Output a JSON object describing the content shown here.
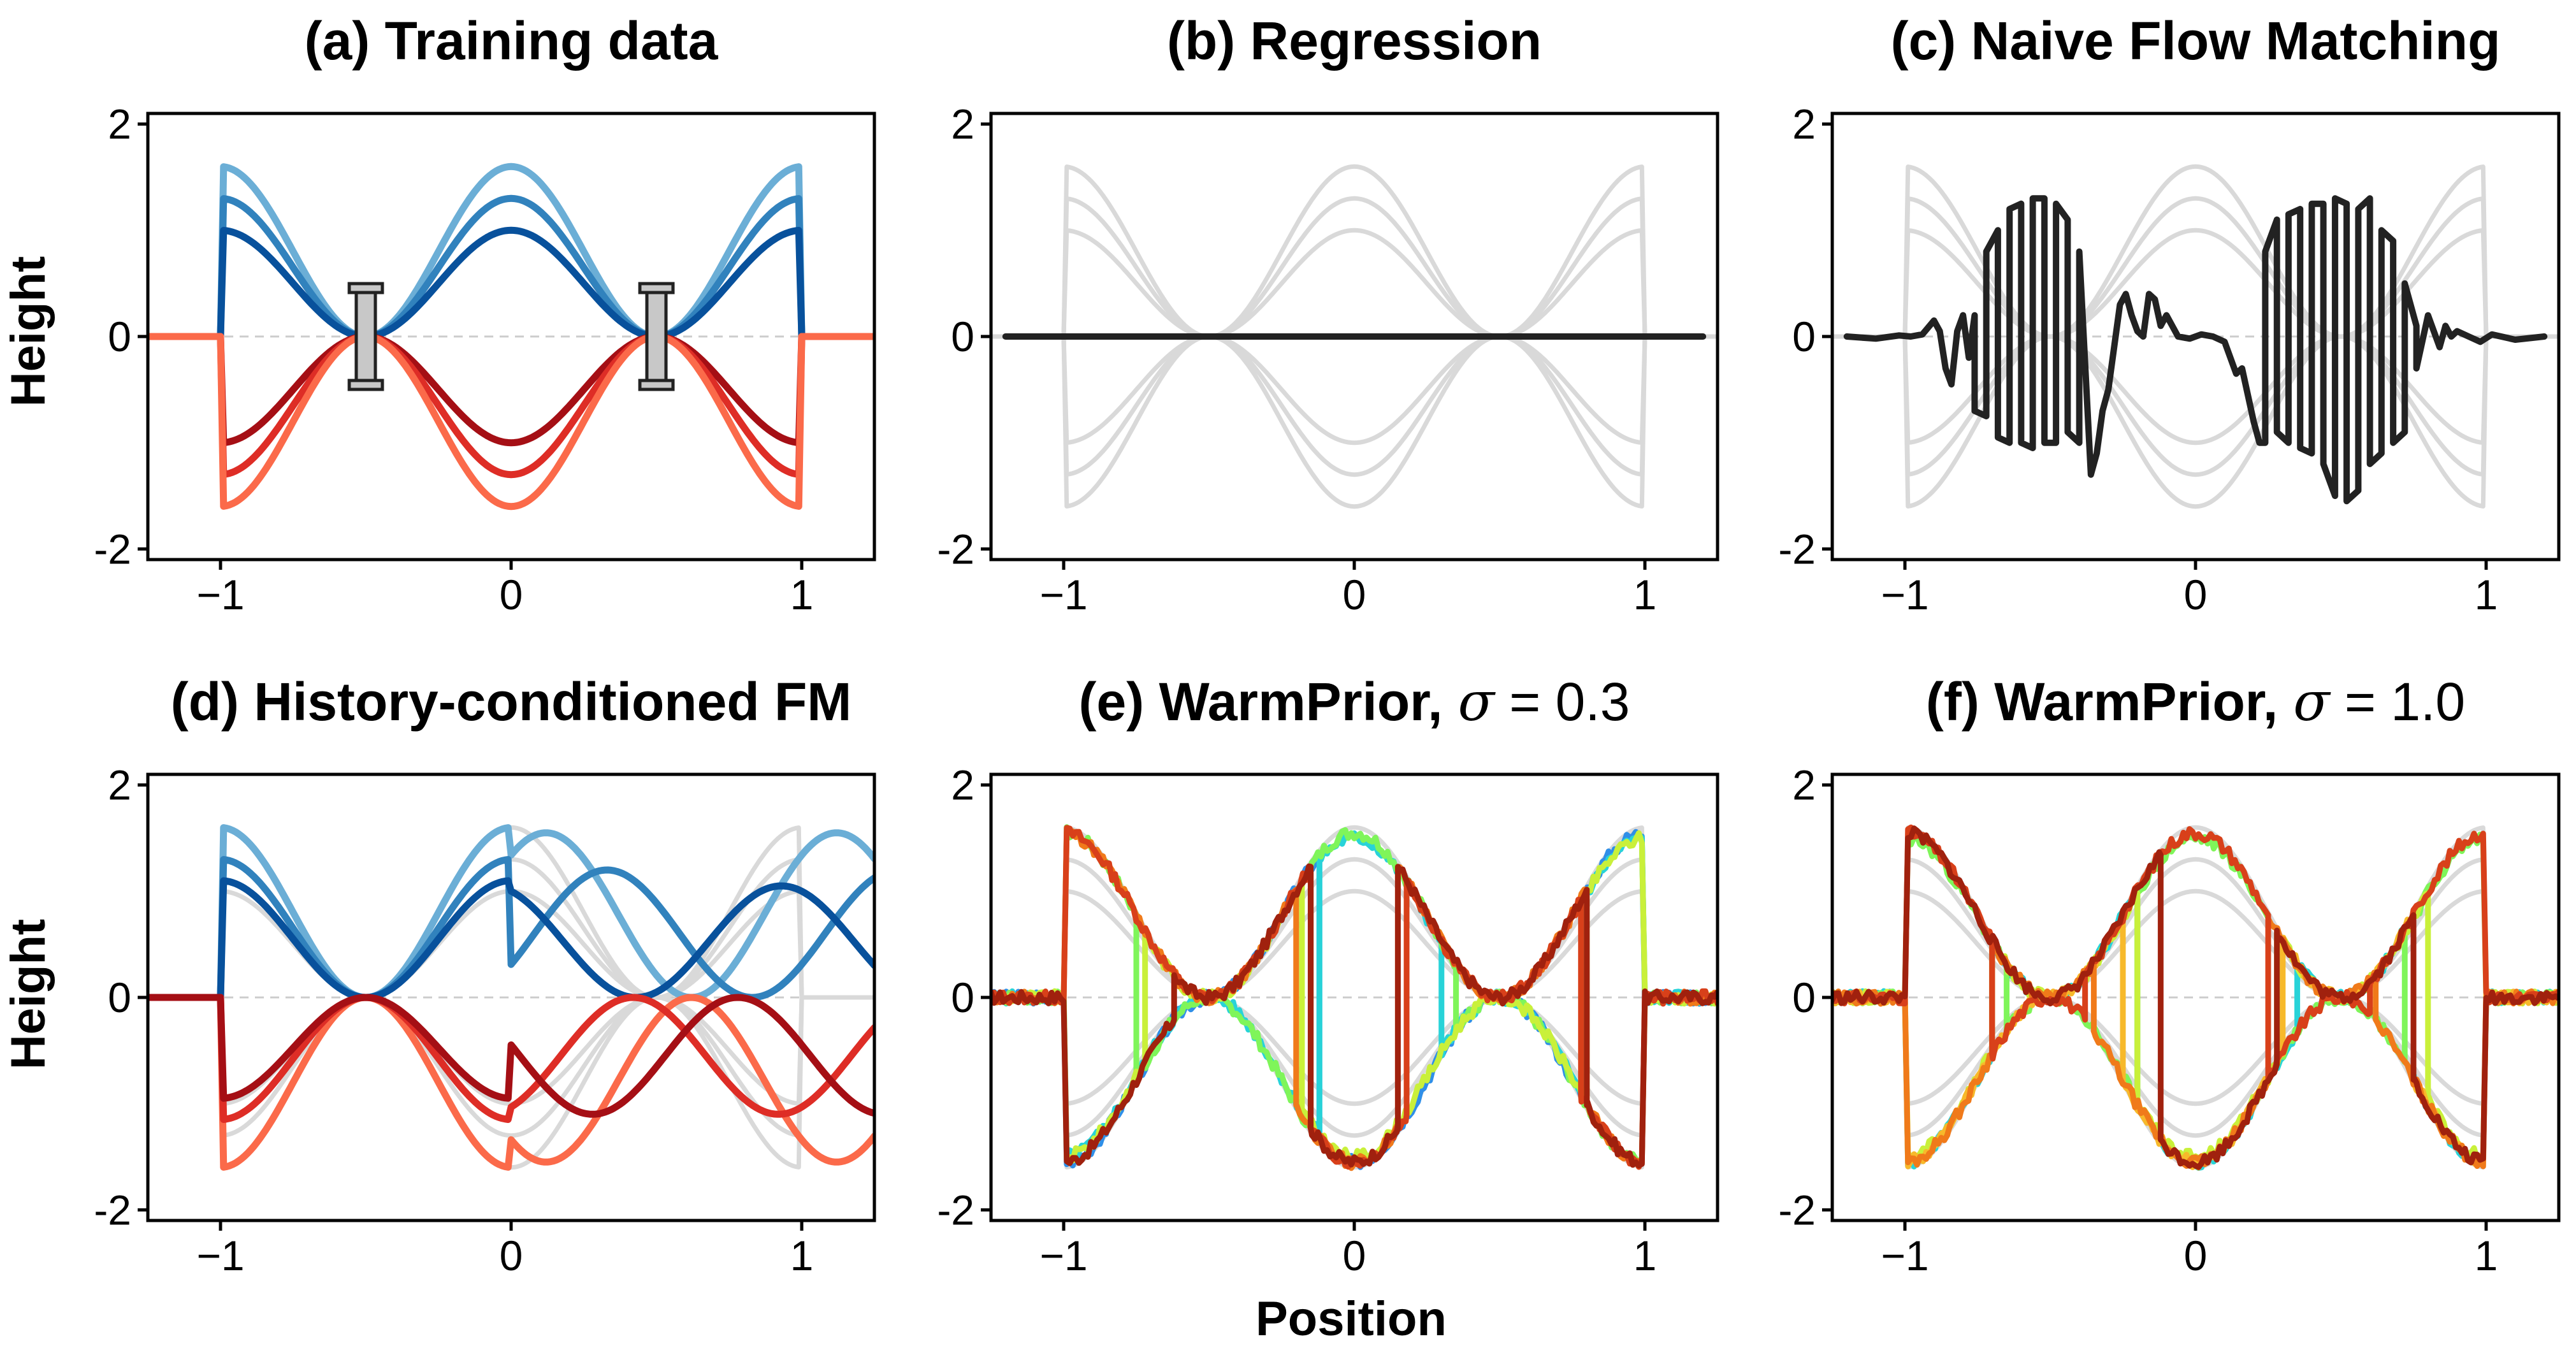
{
  "figure": {
    "xlabel": "Position",
    "ylabel": "Height"
  },
  "colors": {
    "blue": [
      "#6baed6",
      "#3182bd",
      "#08519c"
    ],
    "red": [
      "#fb6a4a",
      "#de2d26",
      "#a50f15"
    ],
    "reference": "#d9d9d9",
    "prediction": "#222222",
    "jet": [
      "#4a4fc0",
      "#2f8fe8",
      "#28d3d8",
      "#7ff55a",
      "#c9f03a",
      "#f7b92b",
      "#f07a1a",
      "#d8401a",
      "#a0210e"
    ]
  },
  "chart_data": [
    {
      "id": "a",
      "type": "line",
      "title": "(a) Training data",
      "xlabel": "",
      "ylabel": "Height",
      "xlim": [
        -1.25,
        1.25
      ],
      "ylim": [
        -2.1,
        2.1
      ],
      "xticks": [
        "−1",
        "0",
        "1"
      ],
      "yticks": [
        "2",
        "0",
        "-2"
      ],
      "zero_line": true,
      "description_of_curves": "h(x) = A·(cos(2πx)+1)/2·sign on |x|<1, else 0",
      "series": [
        {
          "kind": "bump",
          "amp": 1.6,
          "color": "blue.0"
        },
        {
          "kind": "bump",
          "amp": 1.3,
          "color": "blue.1"
        },
        {
          "kind": "bump",
          "amp": 1.0,
          "color": "blue.2"
        },
        {
          "kind": "bump",
          "amp": -1.0,
          "color": "red.2"
        },
        {
          "kind": "bump",
          "amp": -1.3,
          "color": "red.1"
        },
        {
          "kind": "bump",
          "amp": -1.6,
          "color": "red.0"
        }
      ],
      "markers": [
        {
          "type": "pillar",
          "x": -0.5,
          "y_top": 0.45,
          "y_bottom": -0.45
        },
        {
          "type": "pillar",
          "x": 0.5,
          "y_top": 0.45,
          "y_bottom": -0.45
        }
      ]
    },
    {
      "id": "b",
      "type": "line",
      "title": "(b) Regression",
      "xlim": [
        -1.25,
        1.25
      ],
      "ylim": [
        -2.1,
        2.1
      ],
      "xticks": [
        "−1",
        "0",
        "1"
      ],
      "yticks": [
        "2",
        "0",
        "-2"
      ],
      "series": [
        {
          "kind": "bump",
          "amp": 1.6,
          "color": "reference"
        },
        {
          "kind": "bump",
          "amp": 1.3,
          "color": "reference"
        },
        {
          "kind": "bump",
          "amp": 1.0,
          "color": "reference"
        },
        {
          "kind": "bump",
          "amp": -1.0,
          "color": "reference"
        },
        {
          "kind": "bump",
          "amp": -1.3,
          "color": "reference"
        },
        {
          "kind": "bump",
          "amp": -1.6,
          "color": "reference"
        },
        {
          "kind": "points",
          "color": "prediction",
          "width": 10,
          "x": [
            -1.2,
            1.2
          ],
          "y": [
            0,
            0
          ]
        }
      ]
    },
    {
      "id": "c",
      "type": "line",
      "title": "(c) Naive Flow Matching",
      "xlim": [
        -1.25,
        1.25
      ],
      "ylim": [
        -2.1,
        2.1
      ],
      "xticks": [
        "−1",
        "0",
        "1"
      ],
      "yticks": [
        "2",
        "0",
        "-2"
      ],
      "zero_line": true,
      "series": [
        {
          "kind": "bump",
          "amp": 1.6,
          "color": "reference"
        },
        {
          "kind": "bump",
          "amp": 1.3,
          "color": "reference"
        },
        {
          "kind": "bump",
          "amp": 1.0,
          "color": "reference"
        },
        {
          "kind": "bump",
          "amp": -1.0,
          "color": "reference"
        },
        {
          "kind": "bump",
          "amp": -1.3,
          "color": "reference"
        },
        {
          "kind": "bump",
          "amp": -1.6,
          "color": "reference"
        },
        {
          "kind": "points",
          "color": "prediction",
          "width": 10,
          "x": [
            -1.2,
            -1.1,
            -1.02,
            -0.98,
            -0.94,
            -0.9,
            -0.88,
            -0.86,
            -0.84,
            -0.82,
            -0.8,
            -0.78,
            -0.76,
            -0.76,
            -0.72,
            -0.72,
            -0.68,
            -0.68,
            -0.64,
            -0.64,
            -0.6,
            -0.6,
            -0.56,
            -0.56,
            -0.52,
            -0.52,
            -0.48,
            -0.48,
            -0.44,
            -0.44,
            -0.4,
            -0.4,
            -0.36,
            -0.34,
            -0.32,
            -0.3,
            -0.28,
            -0.26,
            -0.24,
            -0.22,
            -0.2,
            -0.18,
            -0.16,
            -0.14,
            -0.12,
            -0.1,
            -0.06,
            -0.02,
            0.02,
            0.06,
            0.1,
            0.12,
            0.14,
            0.16,
            0.18,
            0.2,
            0.22,
            0.24,
            0.24,
            0.28,
            0.28,
            0.32,
            0.32,
            0.36,
            0.36,
            0.4,
            0.4,
            0.44,
            0.44,
            0.48,
            0.48,
            0.52,
            0.52,
            0.56,
            0.56,
            0.6,
            0.6,
            0.64,
            0.64,
            0.68,
            0.68,
            0.72,
            0.72,
            0.76,
            0.76,
            0.8,
            0.82,
            0.84,
            0.86,
            0.88,
            0.9,
            0.94,
            0.98,
            1.02,
            1.1,
            1.2
          ],
          "y": [
            0.0,
            -0.02,
            0.01,
            0.0,
            0.02,
            0.15,
            0.05,
            -0.3,
            -0.45,
            0.05,
            0.2,
            -0.2,
            0.2,
            -0.7,
            -0.75,
            0.8,
            1.0,
            -0.95,
            -1.0,
            1.2,
            1.25,
            -1.0,
            -1.05,
            1.3,
            1.3,
            -1.0,
            -1.0,
            1.25,
            1.1,
            -0.9,
            -1.0,
            0.8,
            -1.3,
            -1.1,
            -0.7,
            -0.5,
            -0.1,
            0.3,
            0.4,
            0.2,
            0.05,
            0.0,
            0.4,
            0.35,
            0.1,
            0.2,
            0.0,
            -0.02,
            0.02,
            0.0,
            -0.05,
            -0.2,
            -0.35,
            -0.3,
            -0.55,
            -0.8,
            -1.0,
            -1.0,
            0.8,
            1.1,
            -0.9,
            -1.0,
            1.15,
            1.2,
            -1.05,
            -1.1,
            1.25,
            1.25,
            -1.2,
            -1.5,
            1.3,
            1.25,
            -1.55,
            -1.45,
            1.2,
            1.3,
            -1.2,
            -1.1,
            1.0,
            0.9,
            -1.0,
            -0.9,
            0.5,
            0.1,
            -0.3,
            0.2,
            0.05,
            -0.1,
            0.1,
            0.0,
            0.05,
            0.0,
            -0.05,
            0.02,
            -0.03,
            0.0
          ]
        }
      ]
    },
    {
      "id": "d",
      "type": "line",
      "title": "(d) History-conditioned FM",
      "xlabel": "",
      "ylabel": "Height",
      "xlim": [
        -1.25,
        1.25
      ],
      "ylim": [
        -2.1,
        2.1
      ],
      "xticks": [
        "−1",
        "0",
        "1"
      ],
      "yticks": [
        "2",
        "0",
        "-2"
      ],
      "zero_line": true,
      "series": [
        {
          "kind": "bump",
          "amp": 1.6,
          "color": "reference"
        },
        {
          "kind": "bump",
          "amp": 1.3,
          "color": "reference"
        },
        {
          "kind": "bump",
          "amp": 1.0,
          "color": "reference"
        },
        {
          "kind": "bump",
          "amp": -1.0,
          "color": "reference"
        },
        {
          "kind": "bump",
          "amp": -1.3,
          "color": "reference"
        },
        {
          "kind": "bump",
          "amp": -1.6,
          "color": "reference"
        },
        {
          "kind": "drift",
          "color": "blue.0",
          "amp1": 1.6,
          "amp2": 1.55,
          "shift": 0.12
        },
        {
          "kind": "drift",
          "color": "blue.1",
          "amp1": 1.3,
          "amp2": 1.2,
          "shift": 0.33
        },
        {
          "kind": "drift",
          "color": "blue.2",
          "amp1": 1.1,
          "amp2": 1.05,
          "shift": -0.07
        },
        {
          "kind": "drift",
          "color": "red.0",
          "amp1": -1.6,
          "amp2": -1.55,
          "shift": 0.12
        },
        {
          "kind": "drift",
          "color": "red.1",
          "amp1": -1.15,
          "amp2": -1.1,
          "shift": -0.08
        },
        {
          "kind": "drift",
          "color": "red.2",
          "amp1": -0.95,
          "amp2": -1.1,
          "shift": 0.28
        }
      ]
    },
    {
      "id": "e",
      "type": "line",
      "title": "(e) WarmPrior,",
      "title_sigma": "σ",
      "title_value": " = 0.3",
      "xlim": [
        -1.25,
        1.25
      ],
      "ylim": [
        -2.1,
        2.1
      ],
      "xticks": [
        "−1",
        "0",
        "1"
      ],
      "yticks": [
        "2",
        "0",
        "-2"
      ],
      "zero_line": true,
      "series": [
        {
          "kind": "bump",
          "amp": 1.6,
          "color": "reference"
        },
        {
          "kind": "bump",
          "amp": 1.3,
          "color": "reference"
        },
        {
          "kind": "bump",
          "amp": 1.0,
          "color": "reference"
        },
        {
          "kind": "bump",
          "amp": -1.0,
          "color": "reference"
        },
        {
          "kind": "bump",
          "amp": -1.3,
          "color": "reference"
        },
        {
          "kind": "bump",
          "amp": -1.6,
          "color": "reference"
        },
        {
          "kind": "sampled",
          "color": "jet.1",
          "flips": [
            -0.5,
            -0.12,
            0.8
          ],
          "start": -1,
          "amp": 1.55,
          "seed": 3
        },
        {
          "kind": "sampled",
          "color": "jet.2",
          "flips": [
            -0.12,
            0.3,
            0.8
          ],
          "start": -1,
          "amp": 1.5,
          "seed": 5
        },
        {
          "kind": "sampled",
          "color": "jet.3",
          "flips": [
            -0.75,
            -0.15,
            0.35
          ],
          "start": 1,
          "amp": 1.55,
          "seed": 7
        },
        {
          "kind": "sampled",
          "color": "jet.4",
          "flips": [
            -0.72,
            -0.18,
            0.8
          ],
          "start": -1,
          "amp": 1.5,
          "seed": 9
        },
        {
          "kind": "sampled",
          "color": "jet.6",
          "flips": [
            -0.2,
            0.15,
            0.8
          ],
          "start": 1,
          "amp": 1.55,
          "seed": 11
        },
        {
          "kind": "sampled",
          "color": "jet.7",
          "flips": [
            -0.15,
            0.18,
            0.78
          ],
          "start": 1,
          "amp": 1.55,
          "seed": 13
        },
        {
          "kind": "sampled",
          "color": "jet.8",
          "flips": [
            -0.62,
            -0.15,
            0.15,
            0.8
          ],
          "start": -1,
          "amp": 1.55,
          "seed": 17
        }
      ]
    },
    {
      "id": "f",
      "type": "line",
      "title": "(f) WarmPrior,",
      "title_sigma": "σ",
      "title_value": " = 1.0",
      "xlim": [
        -1.25,
        1.25
      ],
      "ylim": [
        -2.1,
        2.1
      ],
      "xticks": [
        "−1",
        "0",
        "1"
      ],
      "yticks": [
        "2",
        "0",
        "-2"
      ],
      "zero_line": true,
      "series": [
        {
          "kind": "bump",
          "amp": 1.6,
          "color": "reference"
        },
        {
          "kind": "bump",
          "amp": 1.3,
          "color": "reference"
        },
        {
          "kind": "bump",
          "amp": 1.0,
          "color": "reference"
        },
        {
          "kind": "bump",
          "amp": -1.0,
          "color": "reference"
        },
        {
          "kind": "bump",
          "amp": -1.3,
          "color": "reference"
        },
        {
          "kind": "bump",
          "amp": -1.6,
          "color": "reference"
        },
        {
          "kind": "sampled",
          "color": "jet.2",
          "flips": [
            -0.7,
            -0.2,
            0.35,
            0.75
          ],
          "start": -1,
          "amp": 1.55,
          "seed": 21
        },
        {
          "kind": "sampled",
          "color": "jet.3",
          "flips": [
            -0.65,
            -0.2,
            0.25,
            0.72
          ],
          "start": 1,
          "amp": 1.5,
          "seed": 23
        },
        {
          "kind": "sampled",
          "color": "jet.4",
          "flips": [
            -0.7,
            -0.2,
            0.28,
            0.8
          ],
          "start": -1,
          "amp": 1.5,
          "seed": 25
        },
        {
          "kind": "sampled",
          "color": "jet.5",
          "flips": [
            -0.5,
            -0.25,
            0.3,
            0.75
          ],
          "start": -1,
          "amp": 1.55,
          "seed": 27
        },
        {
          "kind": "sampled",
          "color": "jet.6",
          "flips": [
            -0.7,
            -0.35,
            0.25,
            0.62
          ],
          "start": -1,
          "amp": 1.55,
          "seed": 29
        },
        {
          "kind": "sampled",
          "color": "jet.7",
          "flips": [
            -0.7,
            -0.38,
            0.25,
            0.6
          ],
          "start": 1,
          "amp": 1.55,
          "seed": 31
        },
        {
          "kind": "sampled",
          "color": "jet.8",
          "flips": [
            -0.12,
            0.28,
            0.75
          ],
          "start": 1,
          "amp": 1.55,
          "seed": 33
        }
      ]
    }
  ]
}
